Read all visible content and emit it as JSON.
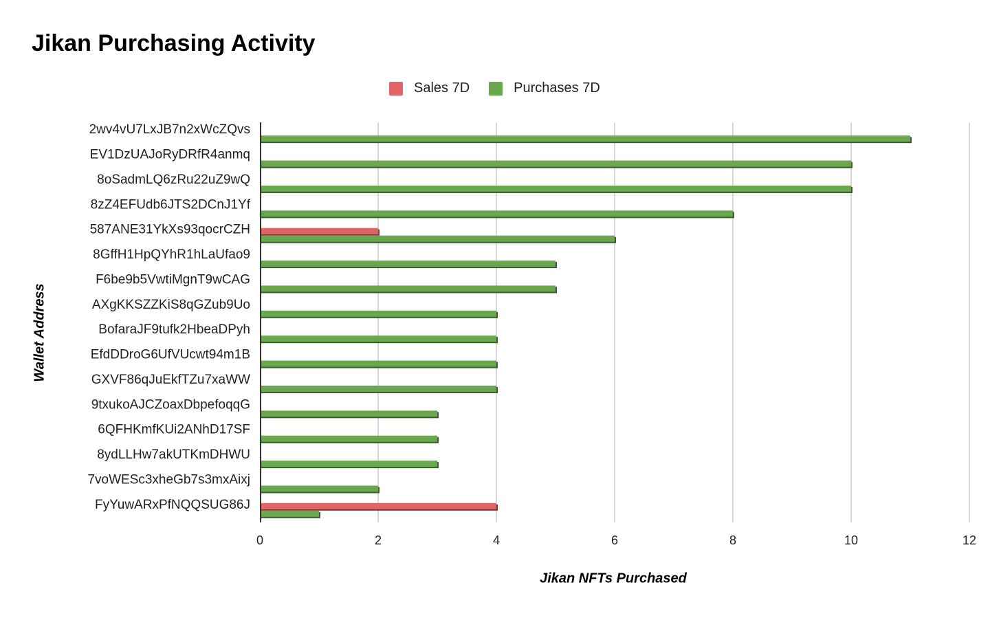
{
  "chart_data": {
    "type": "bar",
    "orientation": "horizontal",
    "title": "Jikan Purchasing Activity",
    "xlabel": "Jikan NFTs Purchased",
    "ylabel": "Wallet Address",
    "xlim": [
      0,
      12
    ],
    "x_ticks": [
      "0",
      "2",
      "4",
      "6",
      "8",
      "10",
      "12"
    ],
    "grid": true,
    "legend_position": "top",
    "categories": [
      "2wv4vU7LxJB7n2xWcZQvs",
      "EV1DzUAJoRyDRfR4anmq",
      "8oSadmLQ6zRu22uZ9wQ",
      "8zZ4EFUdb6JTS2DCnJ1Yf",
      "587ANE31YkXs93qocrCZH",
      "8GffH1HpQYhR1hLaUfao9",
      "F6be9b5VwtiMgnT9wCAG",
      "AXgKKSZZKiS8qGZub9Uo",
      "BofaraJF9tufk2HbeaDPyh",
      "EfdDDroG6UfVUcwt94m1B",
      "GXVF86qJuEkfTZu7xaWW",
      "9txukoAJCZoaxDbpefoqqG",
      "6QFHKmfKUi2ANhD17SF",
      "8ydLLHw7akUTKmDHWU",
      "7voWESc3xheGb7s3mxAixj",
      "FyYuwARxPfNQQSUG86J"
    ],
    "series": [
      {
        "name": "Sales 7D",
        "color": "#e06666",
        "values": [
          0,
          0,
          0,
          0,
          2,
          0,
          0,
          0,
          0,
          0,
          0,
          0,
          0,
          0,
          0,
          4
        ]
      },
      {
        "name": "Purchases 7D",
        "color": "#6aa84f",
        "values": [
          11,
          10,
          10,
          8,
          6,
          5,
          5,
          4,
          4,
          4,
          4,
          3,
          3,
          3,
          2,
          1
        ]
      }
    ]
  }
}
